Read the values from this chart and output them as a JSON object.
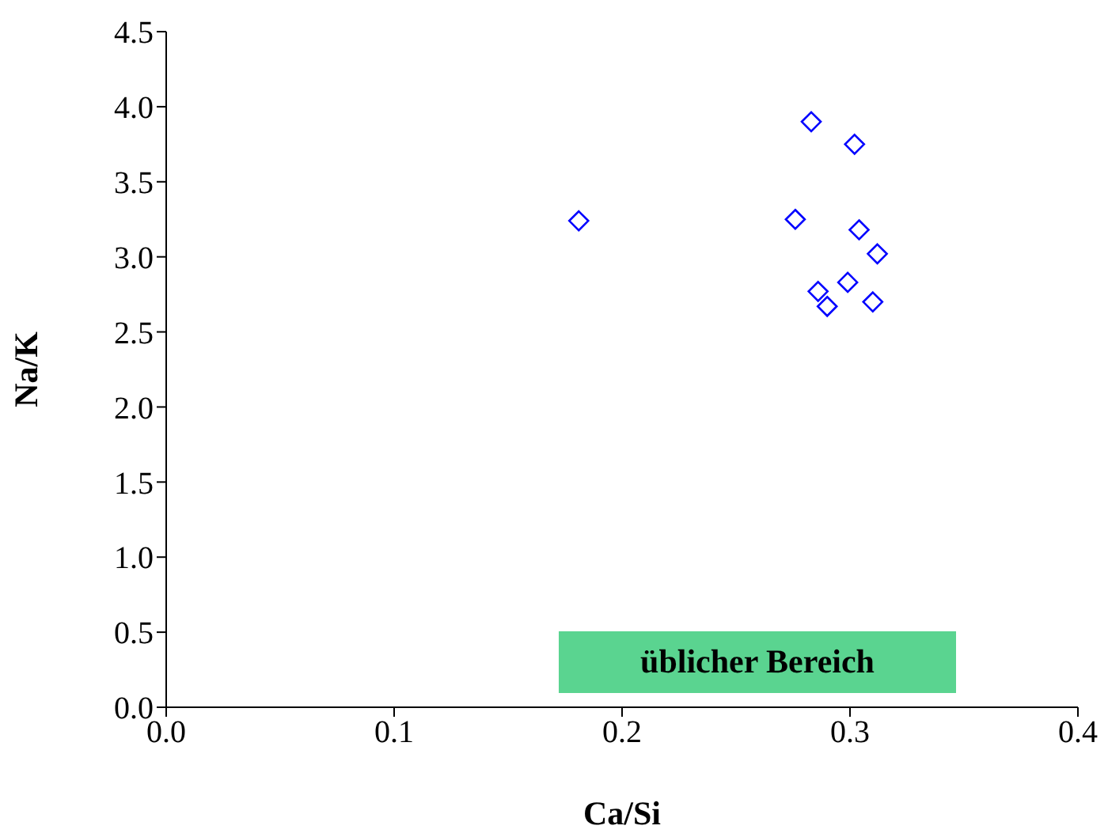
{
  "chart_data": {
    "type": "scatter",
    "xlabel": "Ca/Si",
    "ylabel": "Na/K",
    "x": [
      0.283,
      0.302,
      0.181,
      0.276,
      0.304,
      0.312,
      0.299,
      0.286,
      0.29,
      0.31
    ],
    "values": [
      3.9,
      3.75,
      3.24,
      3.25,
      3.18,
      3.02,
      2.83,
      2.77,
      2.67,
      2.7
    ],
    "color": "#0000ff",
    "marker": "diamond",
    "grid": false,
    "legend": false,
    "xlim": [
      0,
      0.4
    ],
    "xticks": [
      {
        "value": 0,
        "label": "0.0"
      },
      {
        "value": 0.1,
        "label": "0.1"
      },
      {
        "value": 0.2,
        "label": "0.2"
      },
      {
        "value": 0.3,
        "label": "0.3"
      },
      {
        "value": 0.4,
        "label": "0.4"
      }
    ],
    "ylim": [
      0,
      4.5
    ],
    "yticks": [
      {
        "value": 0,
        "label": "0.0"
      },
      {
        "value": 0.5,
        "label": "0.5"
      },
      {
        "value": 1,
        "label": "1.0"
      },
      {
        "value": 1.5,
        "label": "1.5"
      },
      {
        "value": 2,
        "label": "2.0"
      },
      {
        "value": 2.5,
        "label": "2.5"
      },
      {
        "value": 3,
        "label": "3.0"
      },
      {
        "value": 3.5,
        "label": "3.5"
      },
      {
        "value": 4,
        "label": "4.0"
      },
      {
        "value": 4.5,
        "label": "4.5"
      }
    ],
    "annotations": [
      "üblicher Bereich"
    ]
  }
}
